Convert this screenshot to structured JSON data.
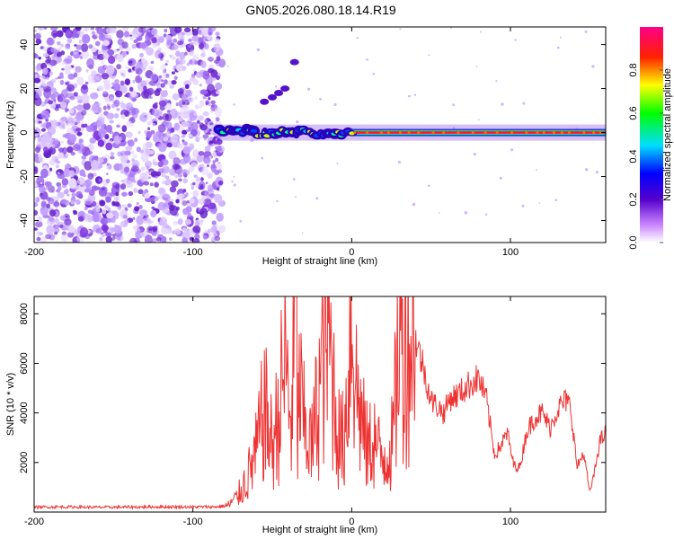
{
  "title": "GN05.2026.080.18.14.R19",
  "chart_data": [
    {
      "type": "heatmap",
      "xlabel": "Height of straight line (km)",
      "ylabel": "Frequency (Hz)",
      "xlim": [
        -200,
        160
      ],
      "ylim": [
        -50,
        48
      ],
      "x_ticks": [
        -200,
        -100,
        0,
        100
      ],
      "x_tick_labels": [
        "-200",
        "-100",
        "0",
        "100"
      ],
      "y_ticks": [
        -40,
        -20,
        0,
        20,
        40
      ],
      "y_tick_labels": [
        "-40",
        "-20",
        "0",
        "20",
        "40"
      ],
      "noise_region_km": [
        -200,
        -85
      ],
      "signal_line_frequency_hz": 0,
      "colorbar": {
        "label": "Normalized spectral amplitude",
        "range": [
          0,
          1
        ],
        "ticks": [
          0,
          0.2,
          0.4,
          0.6,
          0.8
        ],
        "tick_labels": [
          "0.0",
          "0.2",
          "0.4",
          "0.6",
          "0.8"
        ]
      }
    },
    {
      "type": "line",
      "xlabel": "Height of straight line (km)",
      "ylabel": "SNR (10 * v/v)",
      "xlim": [
        -200,
        160
      ],
      "ylim": [
        0,
        8700
      ],
      "x_ticks": [
        -200,
        -100,
        0,
        100
      ],
      "x_tick_labels": [
        "-200",
        "-100",
        "0",
        "100"
      ],
      "y_ticks": [
        2000,
        4000,
        6000,
        8000
      ],
      "y_tick_labels": [
        "2000",
        "4000",
        "6000",
        "8000"
      ],
      "color": "#ee3333",
      "series": [
        {
          "name": "SNR",
          "x": [
            -200,
            -180,
            -160,
            -140,
            -120,
            -100,
            -85,
            -78,
            -72,
            -65,
            -60,
            -55,
            -50,
            -46,
            -42,
            -38,
            -35,
            -34,
            -33,
            -30,
            -25,
            -20,
            -15,
            -10,
            -8,
            -5,
            -2,
            0,
            3,
            6,
            8,
            10,
            14,
            18,
            22,
            26,
            30,
            32,
            36,
            40,
            45,
            50,
            55,
            58,
            62,
            66,
            70,
            75,
            80,
            85,
            90,
            95,
            98,
            102,
            106,
            110,
            115,
            120,
            125,
            130,
            135,
            138,
            142,
            146,
            150,
            153,
            156,
            160
          ],
          "values": [
            200,
            210,
            190,
            200,
            210,
            205,
            210,
            260,
            600,
            1500,
            2400,
            4200,
            2600,
            4000,
            6000,
            3500,
            8700,
            3000,
            5000,
            3500,
            2600,
            5200,
            7400,
            4200,
            3000,
            2800,
            5700,
            8200,
            5000,
            3800,
            3000,
            2500,
            3000,
            2200,
            2400,
            2800,
            7400,
            6800,
            6900,
            7000,
            5900,
            4500,
            4200,
            4000,
            4600,
            4700,
            4900,
            5200,
            5400,
            4500,
            2300,
            2800,
            3200,
            1900,
            1800,
            3200,
            3800,
            4000,
            3400,
            4200,
            4500,
            4200,
            1800,
            2400,
            800,
            1600,
            2800,
            3200
          ]
        }
      ]
    }
  ]
}
